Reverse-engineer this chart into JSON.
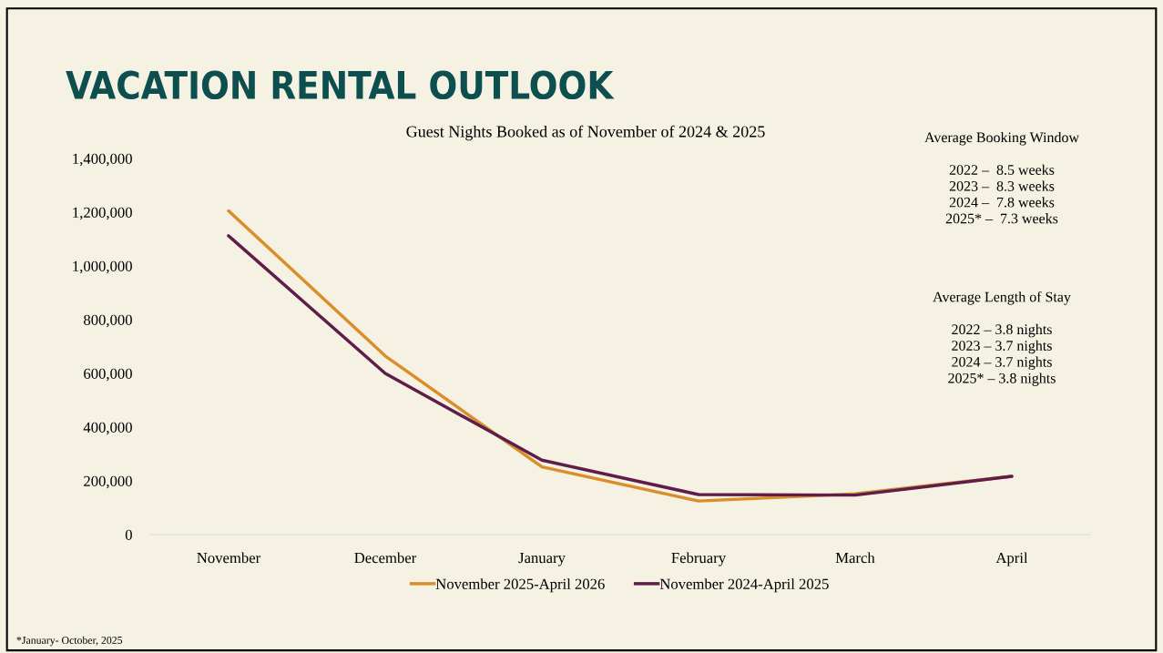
{
  "chart_data": {
    "type": "line",
    "title": "VACATION RENTAL OUTLOOK",
    "subtitle": "Guest Nights Booked as of November of 2024 & 2025",
    "categories": [
      "November",
      "December",
      "January",
      "February",
      "March",
      "April"
    ],
    "series": [
      {
        "name": "November 2025-April 2026",
        "color": "#d98e2b",
        "values": [
          1205000,
          665000,
          252000,
          125000,
          152000,
          217000
        ]
      },
      {
        "name": "November 2024-April 2025",
        "color": "#5e1d4a",
        "values": [
          1112000,
          600000,
          277000,
          149000,
          147000,
          217000
        ]
      }
    ],
    "ylim": [
      0,
      1400000
    ],
    "yticks": [
      {
        "value": 0,
        "label": "0"
      },
      {
        "value": 200000,
        "label": "200,000"
      },
      {
        "value": 400000,
        "label": "400,000"
      },
      {
        "value": 600000,
        "label": "600,000"
      },
      {
        "value": 800000,
        "label": "800,000"
      },
      {
        "value": 1000000,
        "label": "1,000,000"
      },
      {
        "value": 1200000,
        "label": "1,200,000"
      },
      {
        "value": 1400000,
        "label": "1,400,000"
      }
    ],
    "grid": false,
    "legend": "bottom",
    "marker": "none",
    "line_style": "solid",
    "annotations": [
      "Average Booking Window\n\n2022 –  8.5 weeks\n2023 –  8.3 weeks\n2024 –  7.8 weeks\n2025* –  7.3 weeks",
      "Average Length of Stay\n\n2022 – 3.8 nights\n2023 – 3.7 nights\n2024 – 3.7 nights\n2025* – 3.8 nights",
      "*January- October, 2025"
    ]
  }
}
